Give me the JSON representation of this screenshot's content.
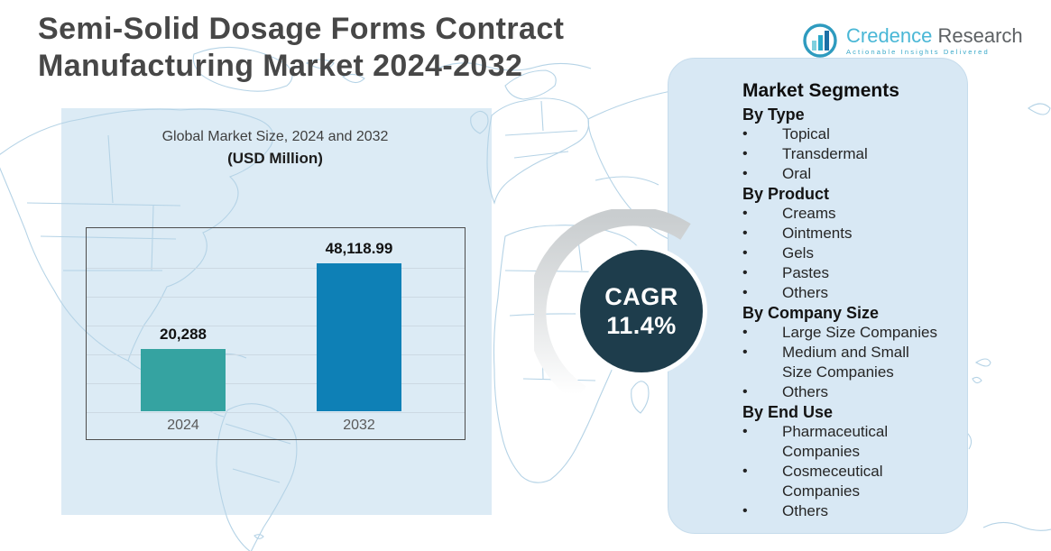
{
  "header": {
    "title": "Semi-Solid Dosage Forms Contract\nManufacturing Market 2024-2032"
  },
  "logo": {
    "brand_primary": "Credence",
    "brand_secondary": "Research",
    "tagline": "Actionable Insights Delivered",
    "icon": "bar-chart-circle-icon"
  },
  "chart_data": {
    "type": "bar",
    "title": "Global Market Size, 2024 and 2032",
    "subtitle": "(USD Million)",
    "categories": [
      "2024",
      "2032"
    ],
    "values": [
      20288,
      48118.99
    ],
    "value_labels": [
      "20,288",
      "48,118.99"
    ],
    "bar_colors": [
      "#35a3a1",
      "#0e80b6"
    ],
    "xlabel": "",
    "ylabel": "",
    "ylim": [
      0,
      60000
    ],
    "grid": true,
    "legend": false
  },
  "cagr": {
    "label": "CAGR",
    "value": "11.4%",
    "circle_color": "#1e3d4c",
    "text_color": "#ffffff"
  },
  "segments": {
    "title": "Market Segments",
    "bullet": "•",
    "groups": [
      {
        "label": "By Type",
        "items": [
          "Topical",
          "Transdermal",
          "Oral"
        ]
      },
      {
        "label": "By Product",
        "items": [
          "Creams",
          "Ointments",
          "Gels",
          "Pastes",
          "Others"
        ]
      },
      {
        "label": "By Company Size",
        "items": [
          "Large Size Companies",
          "Medium and Small Size Companies",
          "Others"
        ]
      },
      {
        "label": "By End Use",
        "items": [
          "Pharmaceutical Companies",
          "Cosmeceutical Companies",
          "Others"
        ]
      }
    ]
  },
  "colors": {
    "left_panel_bg": "#dcebf5",
    "segments_panel_bg": "#d8e8f4",
    "map_line": "#b5d3e6",
    "title_text": "#474747",
    "teal_bar": "#35a3a1",
    "blue_bar": "#0e80b6",
    "cagr_circle": "#1e3d4c"
  }
}
